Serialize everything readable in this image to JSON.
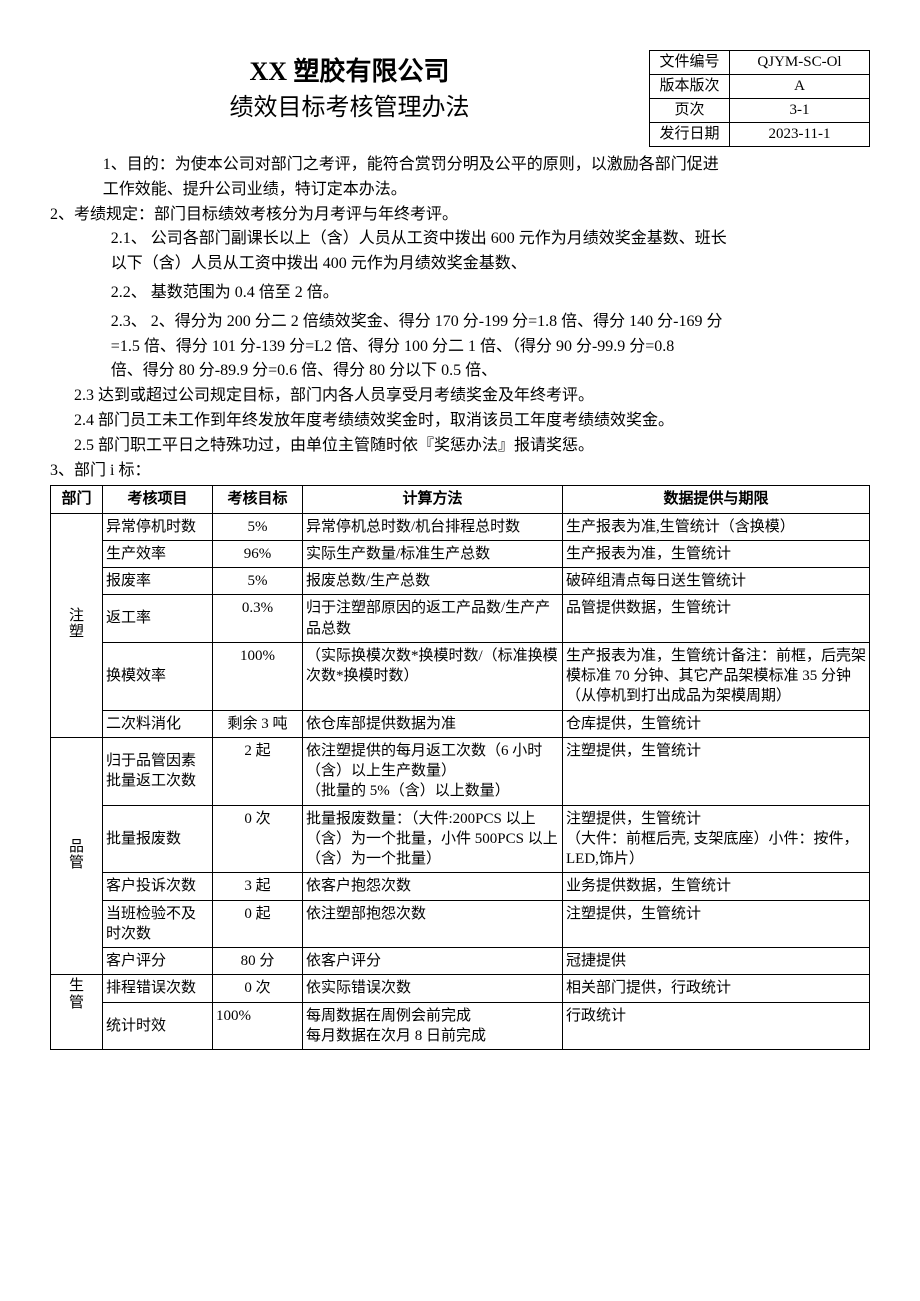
{
  "header": {
    "company": "XX 塑胶有限公司",
    "doc_title": "绩效目标考核管理办法",
    "meta": [
      {
        "label": "文件编号",
        "value": "QJYM-SC-Ol"
      },
      {
        "label": "版本版次",
        "value": "A"
      },
      {
        "label": "页次",
        "value": "3-1"
      },
      {
        "label": "发行日期",
        "value": "2023-11-1"
      }
    ]
  },
  "body": {
    "p1a": "1、目的：为使本公司对部门之考评，能符合赏罚分明及公平的原则，以激励各部门促进",
    "p1b": "工作效能、提升公司业绩，特订定本办法。",
    "p2": "2、考绩规定：部门目标绩效考核分为月考评与年终考评。",
    "p21a": "2.1、 公司各部门副课长以上（含）人员从工资中拨出 600 元作为月绩效奖金基数、班长",
    "p21b": "以下（含）人员从工资中拨出 400 元作为月绩效奖金基数、",
    "p22": "2.2、 基数范围为 0.4 倍至 2 倍。",
    "p23a": "2.3、 2、得分为 200 分二 2 倍绩效奖金、得分 170 分-199 分=1.8 倍、得分 140 分-169 分",
    "p23b": "=1.5 倍、得分 101 分-139 分=L2 倍、得分 100 分二 1 倍、（得分 90 分-99.9 分=0.8",
    "p23c": "倍、得分 80 分-89.9 分=0.6 倍、得分 80 分以下 0.5 倍、",
    "p23x": "2.3 达到或超过公司规定目标，部门内各人员享受月考绩奖金及年终考评。",
    "p24": "2.4 部门员工未工作到年终发放年度考绩绩效奖金时，取消该员工年度考绩绩效奖金。",
    "p25": "2.5 部门职工平日之特殊功过，由单位主管随时依『奖惩办法』报请奖惩。",
    "p3": "3、部门 i 标："
  },
  "table": {
    "headers": {
      "dept": "部门",
      "item": "考核项目",
      "target": "考核目标",
      "method": "计算方法",
      "source": "数据提供与期限"
    },
    "rows": [
      {
        "dept": "注塑",
        "dept_rowspan": 6,
        "item": "异常停机时数",
        "target": "5%",
        "method": "异常停机总时数/机台排程总时数",
        "source": "生产报表为准,生管统计（含换模）"
      },
      {
        "item": "生产效率",
        "target": "96%",
        "method": "实际生产数量/标准生产总数",
        "source": "生产报表为准，生管统计"
      },
      {
        "item": "报废率",
        "target": "5%",
        "method": "报废总数/生产总数",
        "source": "破碎组清点每日送生管统计"
      },
      {
        "item": "返工率",
        "target": "0.3%",
        "method": "归于注塑部原因的返工产品数/生产产品总数",
        "source": "品管提供数据，生管统计"
      },
      {
        "item": "换模效率",
        "target": "100%",
        "method": "（实际换模次数*换模时数/（标准换模次数*换模时数）",
        "source": "生产报表为准，生管统计备注：前框，后壳架模标准 70 分钟、其它产品架模标准 35 分钟（从停机到打出成品为架模周期）"
      },
      {
        "item": "二次料消化",
        "target": "剩余 3 吨",
        "method": "依仓库部提供数据为准",
        "source": "仓库提供，生管统计"
      },
      {
        "dept": "品管",
        "dept_rowspan": 5,
        "item": "归于品管因素批量返工次数",
        "target": "2 起",
        "method": "依注塑提供的每月返工次数（6 小时（含）以上生产数量）\n（批量的 5%（含）以上数量）",
        "source": "注塑提供，生管统计"
      },
      {
        "item": "批量报废数",
        "target": "0 次",
        "method": "批量报废数量：（大件:200PCS 以上（含）为一个批量，小件 500PCS 以上（含）为一个批量）",
        "source": "注塑提供，生管统计\n（大件：前框后壳, 支架底座）小件：按件，LED,饰片）"
      },
      {
        "item": "客户投诉次数",
        "target": "3 起",
        "method": "依客户抱怨次数",
        "source": "业务提供数据，生管统计"
      },
      {
        "item": "当班检验不及时次数",
        "target": "0 起",
        "method": "依注塑部抱怨次数",
        "source": "注塑提供，生管统计"
      },
      {
        "item": "客户评分",
        "target": "80 分",
        "method": "依客户评分",
        "source": "冠捷提供"
      },
      {
        "dept": "生管",
        "dept_rowspan": 2,
        "item": "排程错误次数",
        "target": "0 次",
        "method": "依实际错误次数",
        "source": "相关部门提供，行政统计"
      },
      {
        "item": "统计时效",
        "target": "100%",
        "target_align": "left",
        "method": "每周数据在周例会前完成\n每月数据在次月 8 日前完成",
        "source": "行政统计"
      }
    ]
  }
}
